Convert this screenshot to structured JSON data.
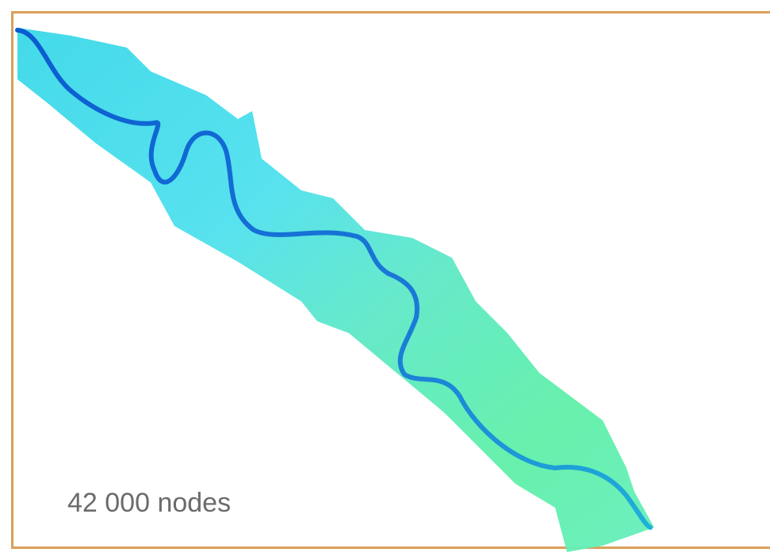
{
  "label": "42 000 nodes"
}
